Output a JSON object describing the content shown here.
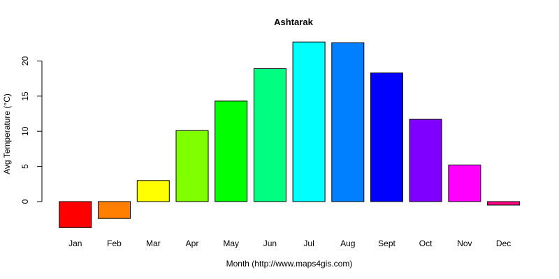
{
  "chart_data": {
    "type": "bar",
    "title": "Ashtarak",
    "xlabel": "Month (http://www.maps4gis.com)",
    "ylabel": "Avg Temperature (°C)",
    "categories": [
      "Jan",
      "Feb",
      "Mar",
      "Apr",
      "May",
      "Jun",
      "Jul",
      "Aug",
      "Sept",
      "Oct",
      "Nov",
      "Dec"
    ],
    "values": [
      -3.7,
      -2.4,
      3.0,
      10.1,
      14.3,
      18.9,
      22.7,
      22.6,
      18.3,
      11.7,
      5.2,
      -0.5
    ],
    "colors": [
      "#ff0000",
      "#ff8000",
      "#ffff00",
      "#80ff00",
      "#00ff00",
      "#00ff80",
      "#00ffff",
      "#0080ff",
      "#0000ff",
      "#8000ff",
      "#ff00ff",
      "#ff0080"
    ],
    "yticks": [
      "0",
      "5",
      "10",
      "15",
      "20"
    ],
    "ylim": [
      -4,
      23
    ],
    "grid": false,
    "legend": "none"
  }
}
